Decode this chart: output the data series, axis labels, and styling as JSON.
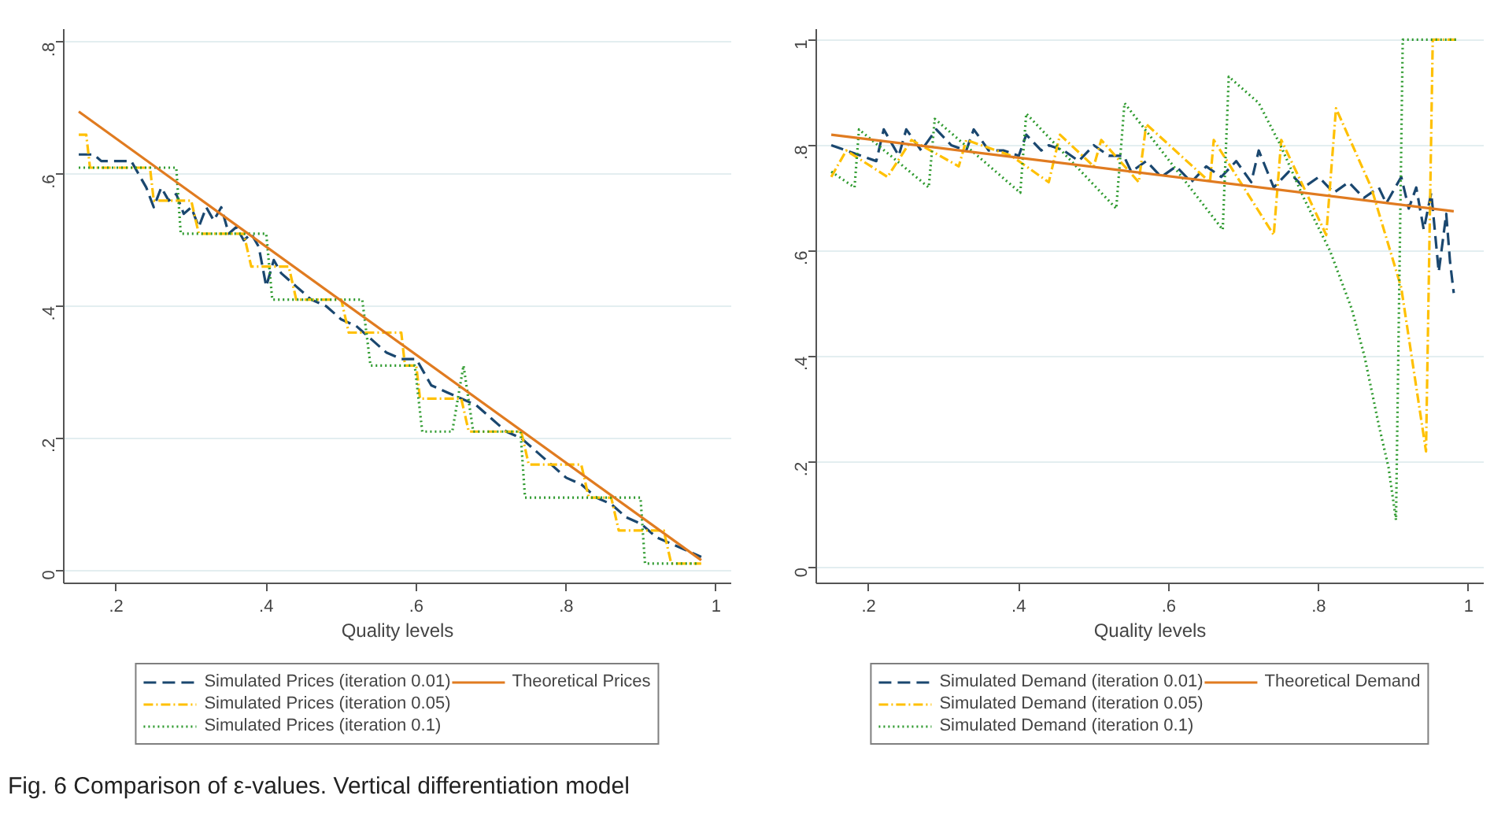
{
  "chart_data": [
    {
      "type": "line",
      "xlabel": "Quality levels",
      "xlim": [
        0.13,
        1.02
      ],
      "ylim": [
        -0.02,
        0.82
      ],
      "xticks": [
        {
          "value": 0.2,
          "label": ".2"
        },
        {
          "value": 0.4,
          "label": ".4"
        },
        {
          "value": 0.6,
          "label": ".6"
        },
        {
          "value": 0.8,
          "label": ".8"
        },
        1
      ],
      "yticks": [
        0,
        {
          "value": 0.2,
          "label": ".2"
        },
        {
          "value": 0.4,
          "label": ".4"
        },
        {
          "value": 0.6,
          "label": ".6"
        },
        {
          "value": 0.8,
          "label": ".8"
        }
      ],
      "grid": "y",
      "legend": "bottom",
      "marker": "none",
      "annotations": [
        "Fig. 6 Comparison of ε-values. Vertical differentiation model"
      ],
      "series": [
        {
          "name": "Simulated Prices (iteration 0.01)",
          "color": "#1a476f",
          "line_style": "dashed",
          "x": [
            0.15,
            0.17,
            0.18,
            0.22,
            0.23,
            0.24,
            0.25,
            0.26,
            0.27,
            0.28,
            0.29,
            0.3,
            0.31,
            0.32,
            0.33,
            0.34,
            0.35,
            0.36,
            0.37,
            0.38,
            0.39,
            0.4,
            0.41,
            0.42,
            0.44,
            0.46,
            0.48,
            0.5,
            0.52,
            0.54,
            0.56,
            0.58,
            0.6,
            0.62,
            0.64,
            0.66,
            0.68,
            0.7,
            0.72,
            0.74,
            0.76,
            0.78,
            0.8,
            0.82,
            0.84,
            0.86,
            0.88,
            0.9,
            0.92,
            0.94,
            0.96,
            0.98
          ],
          "values": [
            0.63,
            0.63,
            0.62,
            0.62,
            0.6,
            0.58,
            0.55,
            0.58,
            0.56,
            0.57,
            0.54,
            0.55,
            0.52,
            0.55,
            0.53,
            0.55,
            0.51,
            0.52,
            0.5,
            0.51,
            0.49,
            0.43,
            0.47,
            0.45,
            0.43,
            0.41,
            0.4,
            0.38,
            0.37,
            0.35,
            0.33,
            0.32,
            0.32,
            0.28,
            0.27,
            0.26,
            0.25,
            0.23,
            0.21,
            0.2,
            0.18,
            0.16,
            0.14,
            0.13,
            0.11,
            0.1,
            0.08,
            0.07,
            0.05,
            0.04,
            0.03,
            0.02
          ]
        },
        {
          "name": "Simulated Prices (iteration 0.05)",
          "color": "#ffc000",
          "line_style": "dashdot",
          "x": [
            0.15,
            0.16,
            0.165,
            0.245,
            0.25,
            0.3,
            0.31,
            0.37,
            0.38,
            0.43,
            0.44,
            0.5,
            0.51,
            0.58,
            0.585,
            0.6,
            0.605,
            0.66,
            0.67,
            0.74,
            0.75,
            0.82,
            0.83,
            0.86,
            0.87,
            0.93,
            0.94,
            0.98
          ],
          "values": [
            0.66,
            0.66,
            0.61,
            0.61,
            0.56,
            0.56,
            0.51,
            0.51,
            0.46,
            0.46,
            0.41,
            0.41,
            0.36,
            0.36,
            0.31,
            0.31,
            0.26,
            0.26,
            0.21,
            0.21,
            0.16,
            0.16,
            0.11,
            0.11,
            0.06,
            0.06,
            0.01,
            0.01
          ]
        },
        {
          "name": "Simulated Prices (iteration 0.1)",
          "color": "#2e9a2e",
          "line_style": "dotted",
          "x": [
            0.15,
            0.28,
            0.286,
            0.4,
            0.408,
            0.528,
            0.539,
            0.598,
            0.608,
            0.648,
            0.663,
            0.676,
            0.739,
            0.745,
            0.899,
            0.905,
            0.977
          ],
          "values": [
            0.61,
            0.61,
            0.51,
            0.51,
            0.41,
            0.41,
            0.31,
            0.31,
            0.21,
            0.21,
            0.31,
            0.21,
            0.21,
            0.11,
            0.11,
            0.01,
            0.01
          ]
        },
        {
          "name": "Theoretical Prices",
          "color": "#e07b20",
          "line_style": "solid",
          "x": [
            0.15,
            0.98
          ],
          "values": [
            0.695,
            0.015
          ]
        }
      ]
    },
    {
      "type": "line",
      "xlabel": "Quality levels",
      "xlim": [
        0.13,
        1.02
      ],
      "ylim": [
        -0.03,
        1.02
      ],
      "xticks": [
        {
          "value": 0.2,
          "label": ".2"
        },
        {
          "value": 0.4,
          "label": ".4"
        },
        {
          "value": 0.6,
          "label": ".6"
        },
        {
          "value": 0.8,
          "label": ".8"
        },
        1
      ],
      "yticks": [
        0,
        {
          "value": 0.2,
          "label": ".2"
        },
        {
          "value": 0.4,
          "label": ".4"
        },
        {
          "value": 0.6,
          "label": ".6"
        },
        {
          "value": 0.8,
          "label": ".8"
        },
        1
      ],
      "grid": "y",
      "legend": "bottom",
      "marker": "none",
      "series": [
        {
          "name": "Simulated Demand (iteration 0.01)",
          "color": "#1a476f",
          "line_style": "dashed",
          "x": [
            0.15,
            0.17,
            0.19,
            0.21,
            0.22,
            0.24,
            0.25,
            0.27,
            0.29,
            0.31,
            0.33,
            0.34,
            0.36,
            0.38,
            0.4,
            0.41,
            0.43,
            0.44,
            0.46,
            0.48,
            0.5,
            0.52,
            0.54,
            0.55,
            0.57,
            0.59,
            0.61,
            0.63,
            0.65,
            0.67,
            0.69,
            0.71,
            0.72,
            0.74,
            0.76,
            0.78,
            0.8,
            0.82,
            0.84,
            0.86,
            0.88,
            0.89,
            0.91,
            0.92,
            0.93,
            0.94,
            0.95,
            0.96,
            0.97,
            0.975,
            0.98
          ],
          "values": [
            0.8,
            0.79,
            0.78,
            0.77,
            0.83,
            0.78,
            0.83,
            0.79,
            0.83,
            0.8,
            0.79,
            0.83,
            0.79,
            0.79,
            0.78,
            0.82,
            0.79,
            0.8,
            0.79,
            0.77,
            0.8,
            0.78,
            0.78,
            0.75,
            0.77,
            0.74,
            0.76,
            0.73,
            0.76,
            0.74,
            0.77,
            0.73,
            0.79,
            0.72,
            0.75,
            0.72,
            0.74,
            0.71,
            0.73,
            0.7,
            0.72,
            0.69,
            0.74,
            0.68,
            0.72,
            0.64,
            0.71,
            0.56,
            0.67,
            0.58,
            0.52
          ]
        },
        {
          "name": "Simulated Demand (iteration 0.05)",
          "color": "#ffc000",
          "line_style": "dashdot",
          "x": [
            0.15,
            0.17,
            0.225,
            0.257,
            0.32,
            0.33,
            0.39,
            0.44,
            0.455,
            0.5,
            0.51,
            0.56,
            0.57,
            0.655,
            0.66,
            0.74,
            0.75,
            0.81,
            0.823,
            0.87,
            0.91,
            0.943,
            0.952,
            0.983
          ],
          "values": [
            0.74,
            0.79,
            0.74,
            0.81,
            0.76,
            0.81,
            0.78,
            0.73,
            0.82,
            0.76,
            0.81,
            0.73,
            0.84,
            0.73,
            0.81,
            0.63,
            0.81,
            0.63,
            0.87,
            0.72,
            0.53,
            0.22,
            1.0,
            1.0
          ]
        },
        {
          "name": "Simulated Demand (iteration 0.1)",
          "color": "#2e9a2e",
          "line_style": "dotted",
          "x": [
            0.15,
            0.181,
            0.187,
            0.28,
            0.288,
            0.402,
            0.41,
            0.53,
            0.541,
            0.672,
            0.68,
            0.72,
            0.749,
            0.78,
            0.815,
            0.844,
            0.861,
            0.88,
            0.893,
            0.903,
            0.912,
            0.983
          ],
          "values": [
            0.75,
            0.72,
            0.83,
            0.72,
            0.85,
            0.71,
            0.86,
            0.68,
            0.88,
            0.64,
            0.93,
            0.88,
            0.8,
            0.7,
            0.6,
            0.49,
            0.4,
            0.27,
            0.19,
            0.09,
            1.0,
            1.0
          ]
        },
        {
          "name": "Theoretical Demand",
          "color": "#e07b20",
          "line_style": "solid",
          "x": [
            0.15,
            0.98
          ],
          "values": [
            0.82,
            0.675
          ]
        }
      ]
    }
  ]
}
